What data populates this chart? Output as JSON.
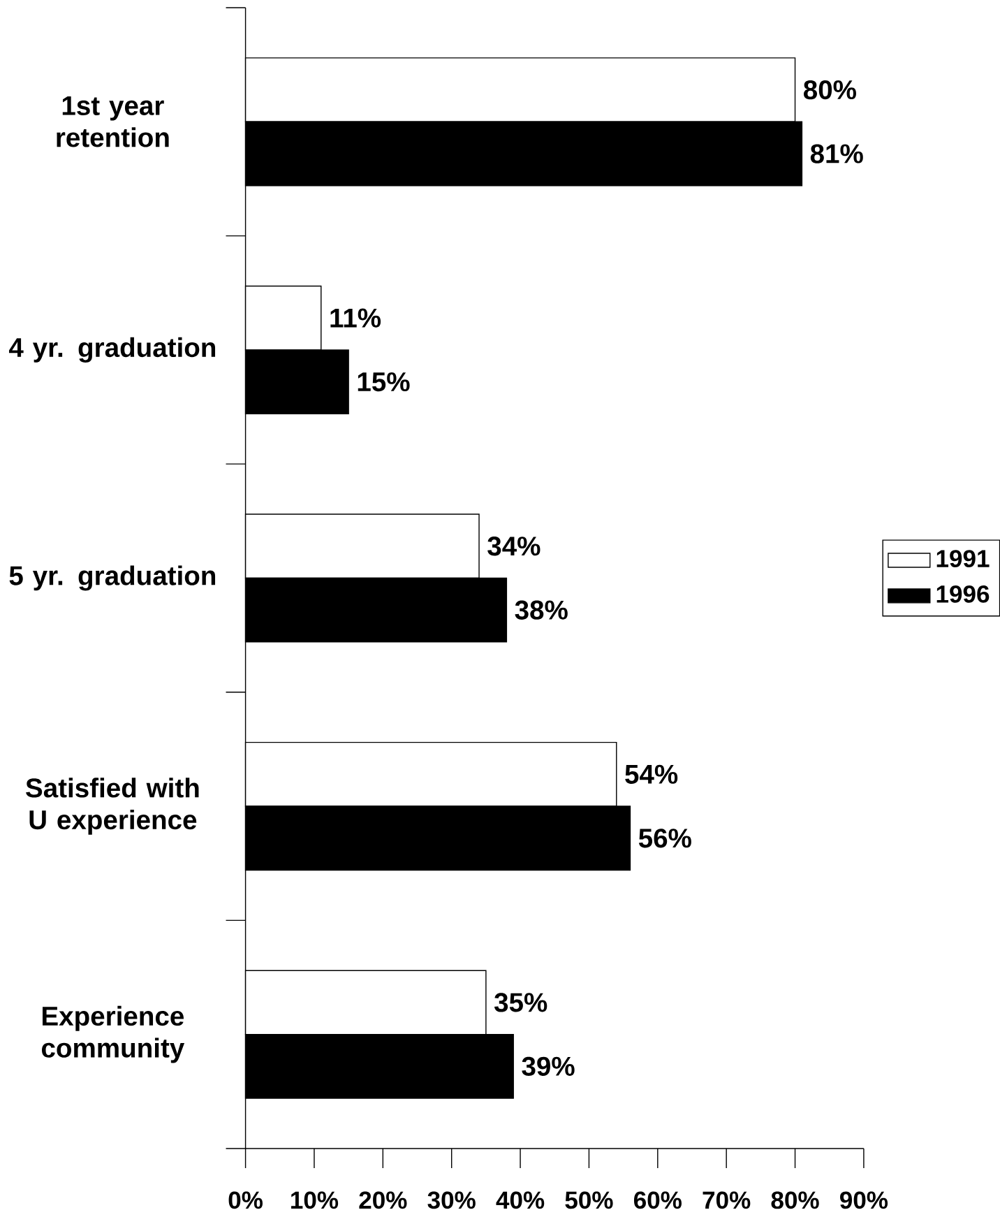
{
  "chart_data": {
    "type": "bar",
    "orientation": "horizontal",
    "categories": [
      "1st year retention",
      "4 yr. graduation",
      "5 yr. graduation",
      "Satisfied with U experience",
      "Experience community"
    ],
    "series": [
      {
        "name": "1991",
        "color": "#ffffff",
        "values": [
          80,
          11,
          34,
          54,
          35
        ],
        "value_labels": [
          "80%",
          "11%",
          "34%",
          "54%",
          "35%"
        ]
      },
      {
        "name": "1996",
        "color": "#000000",
        "values": [
          81,
          15,
          38,
          56,
          39
        ],
        "value_labels": [
          "81%",
          "15%",
          "38%",
          "56%",
          "39%"
        ]
      }
    ],
    "xlim": [
      0,
      90
    ],
    "xticks": [
      {
        "value": 0,
        "label": "0%"
      },
      {
        "value": 10,
        "label": "10%"
      },
      {
        "value": 20,
        "label": "20%"
      },
      {
        "value": 30,
        "label": "30%"
      },
      {
        "value": 40,
        "label": "40%"
      },
      {
        "value": 50,
        "label": "50%"
      },
      {
        "value": 60,
        "label": "60%"
      },
      {
        "value": 70,
        "label": "70%"
      },
      {
        "value": 80,
        "label": "80%"
      },
      {
        "value": 90,
        "label": "90%"
      }
    ],
    "legend": "right"
  }
}
